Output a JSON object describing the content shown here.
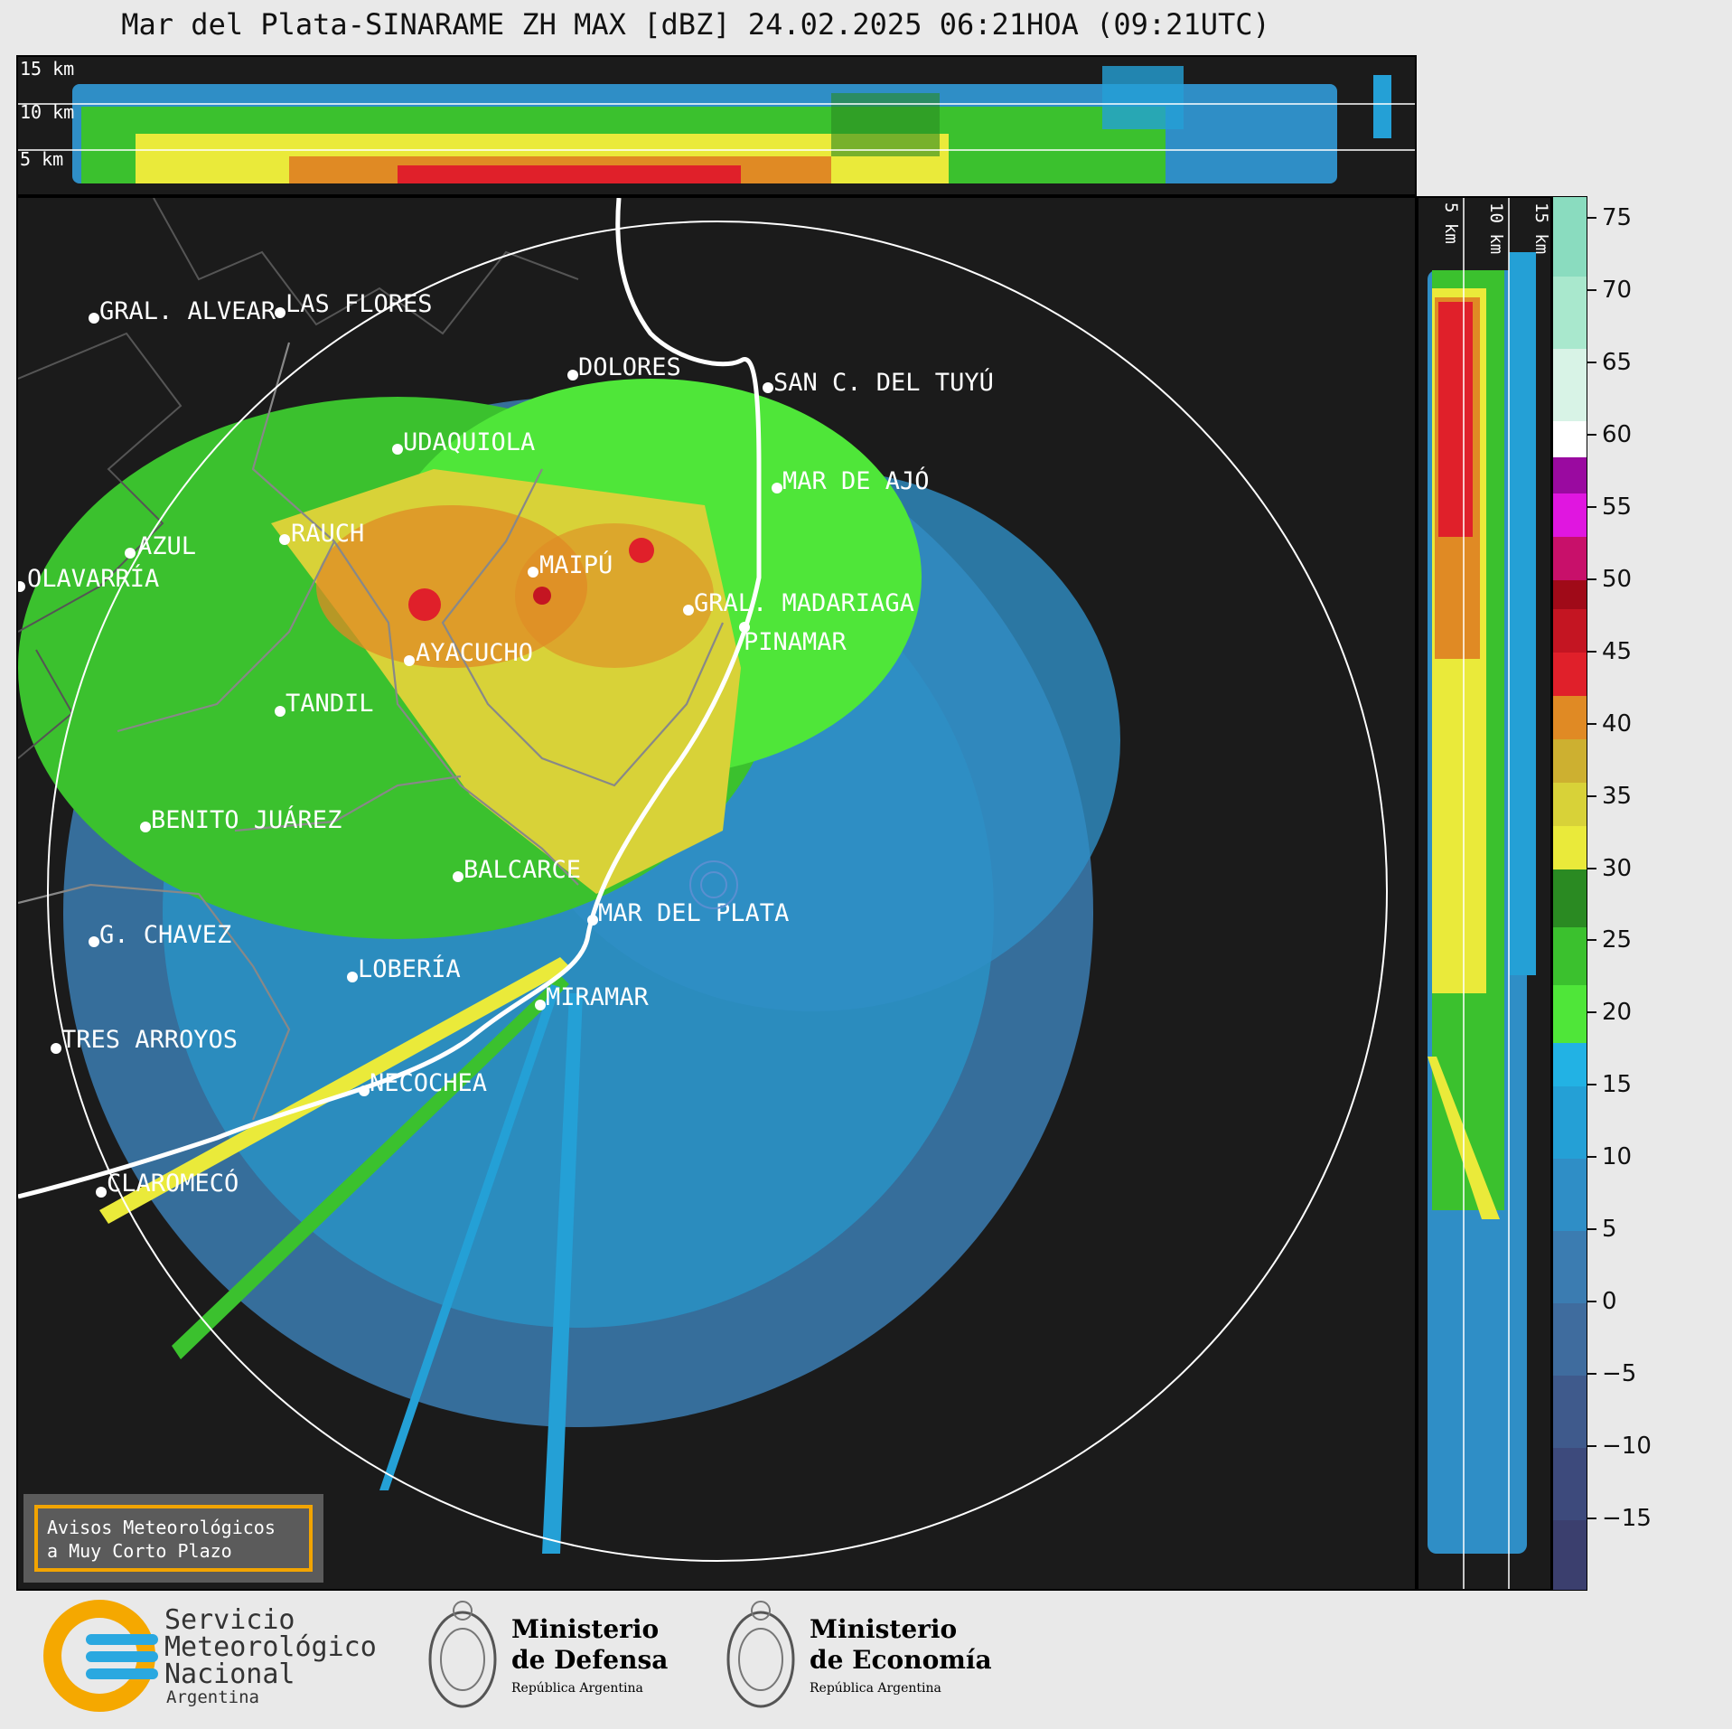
{
  "title": "Mar del Plata-SINARAME ZH MAX [dBZ] 24.02.2025 06:21HOA (09:21UTC)",
  "top_panel": {
    "height_labels": [
      "15 km",
      "10 km",
      "5 km"
    ]
  },
  "side_panel": {
    "height_labels": [
      "5 km",
      "10 km",
      "15 km"
    ]
  },
  "cities": [
    {
      "name": "GRAL. ALVEAR"
    },
    {
      "name": "LAS FLORES"
    },
    {
      "name": "DOLORES"
    },
    {
      "name": "SAN C. DEL TUYÚ"
    },
    {
      "name": "UDAQUIOLA"
    },
    {
      "name": "MAR DE AJÓ"
    },
    {
      "name": "AZUL"
    },
    {
      "name": "RAUCH"
    },
    {
      "name": "MAIPÚ"
    },
    {
      "name": "OLAVARRÍA"
    },
    {
      "name": "GRAL. MADARIAGA"
    },
    {
      "name": "PINAMAR"
    },
    {
      "name": "AYACUCHO"
    },
    {
      "name": "TANDIL"
    },
    {
      "name": "BENITO JUÁREZ"
    },
    {
      "name": "BALCARCE"
    },
    {
      "name": "MAR DEL PLATA"
    },
    {
      "name": "G. CHAVEZ"
    },
    {
      "name": "LOBERÍA"
    },
    {
      "name": "MIRAMAR"
    },
    {
      "name": "TRES ARROYOS"
    },
    {
      "name": "NECOCHEA"
    },
    {
      "name": "CLAROMECÓ"
    }
  ],
  "legend_box": {
    "line1": "Avisos Meteorológicos",
    "line2": "a Muy Corto Plazo"
  },
  "colorbar": {
    "unit": "dBZ",
    "ticks": [
      "75",
      "70",
      "65",
      "60",
      "55",
      "50",
      "45",
      "40",
      "35",
      "30",
      "25",
      "20",
      "15",
      "10",
      "5",
      "0",
      "−5",
      "−10",
      "−15"
    ],
    "min": -20,
    "max": 76.5,
    "colors": [
      {
        "from": -20,
        "to": -15,
        "color": "#3b3f6e"
      },
      {
        "from": -15,
        "to": -10,
        "color": "#3d4a7c"
      },
      {
        "from": -10,
        "to": -5,
        "color": "#3f5a8c"
      },
      {
        "from": -5,
        "to": 0,
        "color": "#3f6c9e"
      },
      {
        "from": 0,
        "to": 5,
        "color": "#3b7cb1"
      },
      {
        "from": 5,
        "to": 10,
        "color": "#2f8ec6"
      },
      {
        "from": 10,
        "to": 15,
        "color": "#24a0d6"
      },
      {
        "from": 15,
        "to": 18,
        "color": "#22b2e4"
      },
      {
        "from": 18,
        "to": 22,
        "color": "#4fe639"
      },
      {
        "from": 22,
        "to": 26,
        "color": "#3bc12e"
      },
      {
        "from": 26,
        "to": 30,
        "color": "#2a8a22"
      },
      {
        "from": 30,
        "to": 33,
        "color": "#eaea3a"
      },
      {
        "from": 33,
        "to": 36,
        "color": "#d8d238"
      },
      {
        "from": 36,
        "to": 39,
        "color": "#cdb030"
      },
      {
        "from": 39,
        "to": 42,
        "color": "#e08a24"
      },
      {
        "from": 42,
        "to": 45,
        "color": "#e0202a"
      },
      {
        "from": 45,
        "to": 48,
        "color": "#c41522"
      },
      {
        "from": 48,
        "to": 50,
        "color": "#a00a18"
      },
      {
        "from": 50,
        "to": 53,
        "color": "#c8106a"
      },
      {
        "from": 53,
        "to": 56,
        "color": "#e016e0"
      },
      {
        "from": 56,
        "to": 58.5,
        "color": "#9a0aa0"
      },
      {
        "from": 58.5,
        "to": 61,
        "color": "#ffffff"
      },
      {
        "from": 61,
        "to": 66,
        "color": "#d8f3e6"
      },
      {
        "from": 66,
        "to": 71,
        "color": "#a9e8cd"
      },
      {
        "from": 71,
        "to": 76.5,
        "color": "#8adcbf"
      }
    ]
  },
  "footer": {
    "smn_line1": "Servicio",
    "smn_line2": "Meteorológico",
    "smn_line3": "Nacional",
    "smn_line4": "Argentina",
    "defensa_line1": "Ministerio",
    "defensa_line2": "de Defensa",
    "defensa_line3": "República Argentina",
    "economia_line1": "Ministerio",
    "economia_line2": "de Economía",
    "economia_line3": "República Argentina"
  }
}
